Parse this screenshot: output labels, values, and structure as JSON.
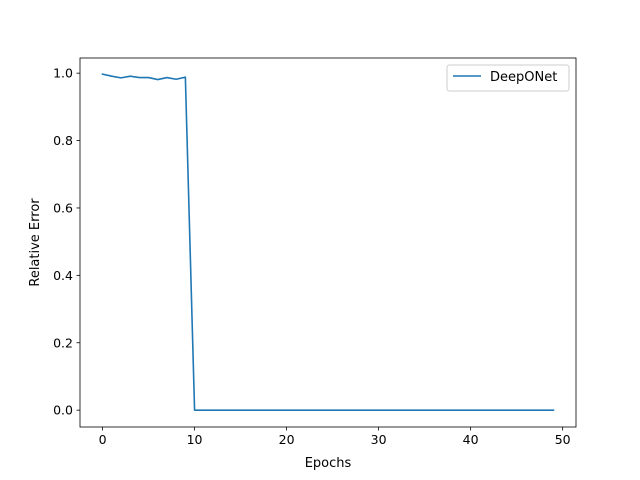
{
  "chart_data": {
    "type": "line",
    "xlabel": "Epochs",
    "ylabel": "Relative Error",
    "xlim": [
      -2.45,
      51.45
    ],
    "ylim": [
      -0.05,
      1.045
    ],
    "xticks": [
      0,
      10,
      20,
      30,
      40,
      50
    ],
    "yticks": [
      0.0,
      0.2,
      0.4,
      0.6,
      0.8,
      1.0
    ],
    "xtick_labels": [
      "0",
      "10",
      "20",
      "30",
      "40",
      "50"
    ],
    "ytick_labels": [
      "0.0",
      "0.2",
      "0.4",
      "0.6",
      "0.8",
      "1.0"
    ],
    "grid": false,
    "legend_position": "top-right",
    "series": [
      {
        "name": "DeepONet",
        "color": "#1f77b4",
        "x": [
          0,
          1,
          2,
          3,
          4,
          5,
          6,
          7,
          8,
          9,
          10,
          11,
          12,
          13,
          14,
          15,
          16,
          17,
          18,
          19,
          20,
          21,
          22,
          23,
          24,
          25,
          26,
          27,
          28,
          29,
          30,
          31,
          32,
          33,
          34,
          35,
          36,
          37,
          38,
          39,
          40,
          41,
          42,
          43,
          44,
          45,
          46,
          47,
          48,
          49
        ],
        "values": [
          0.997,
          0.991,
          0.986,
          0.991,
          0.987,
          0.987,
          0.981,
          0.987,
          0.982,
          0.988,
          0.0,
          0.0,
          0.0,
          0.0,
          0.0,
          0.0,
          0.0,
          0.0,
          0.0,
          0.0,
          0.0,
          0.0,
          0.0,
          0.0,
          0.0,
          0.0,
          0.0,
          0.0,
          0.0,
          0.0,
          0.0,
          0.0,
          0.0,
          0.0,
          0.0,
          0.0,
          0.0,
          0.0,
          0.0,
          0.0,
          0.0,
          0.0,
          0.0,
          0.0,
          0.0,
          0.0,
          0.0,
          0.0,
          0.0,
          0.0
        ]
      }
    ]
  }
}
